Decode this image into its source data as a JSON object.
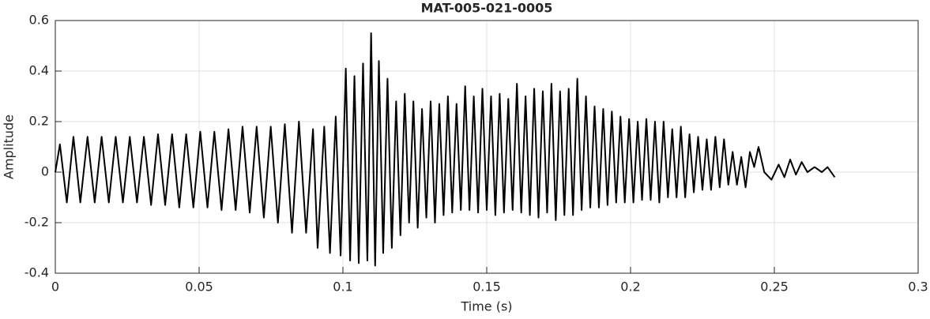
{
  "chart_data": {
    "type": "line",
    "title": "MAT-005-021-0005",
    "x_label": "Time (s)",
    "y_label": "Amplitude",
    "color": "#000000",
    "grid": true,
    "xlim": [
      0,
      0.3
    ],
    "xticks": [
      0,
      0.05,
      0.1,
      0.15,
      0.2,
      0.25,
      0.3
    ],
    "ylim": [
      -0.4,
      0.6
    ],
    "yticks": [
      -0.4,
      -0.2,
      0,
      0.2,
      0.4,
      0.6
    ],
    "x": [
      0,
      0.0016,
      0.004,
      0.0063,
      0.0087,
      0.0112,
      0.0137,
      0.0161,
      0.0186,
      0.021,
      0.0235,
      0.0259,
      0.0284,
      0.0308,
      0.0333,
      0.0357,
      0.0382,
      0.0406,
      0.0431,
      0.0455,
      0.048,
      0.0504,
      0.0529,
      0.0553,
      0.0578,
      0.0602,
      0.0627,
      0.0651,
      0.0676,
      0.07,
      0.0725,
      0.0749,
      0.0774,
      0.0798,
      0.0823,
      0.0847,
      0.0872,
      0.0896,
      0.0912,
      0.0935,
      0.0955,
      0.0975,
      0.0992,
      0.101,
      0.1025,
      0.104,
      0.1055,
      0.107,
      0.1085,
      0.1098,
      0.1112,
      0.1125,
      0.114,
      0.1155,
      0.117,
      0.1185,
      0.12,
      0.1215,
      0.123,
      0.1245,
      0.126,
      0.1275,
      0.129,
      0.1305,
      0.132,
      0.1335,
      0.135,
      0.1365,
      0.138,
      0.1395,
      0.141,
      0.1425,
      0.144,
      0.1455,
      0.147,
      0.1485,
      0.15,
      0.1515,
      0.153,
      0.1545,
      0.156,
      0.1575,
      0.159,
      0.1605,
      0.162,
      0.1635,
      0.165,
      0.1665,
      0.168,
      0.1695,
      0.171,
      0.1725,
      0.174,
      0.1755,
      0.177,
      0.1785,
      0.18,
      0.1815,
      0.183,
      0.1845,
      0.186,
      0.1875,
      0.189,
      0.1905,
      0.192,
      0.1935,
      0.195,
      0.1965,
      0.198,
      0.1995,
      0.201,
      0.2025,
      0.204,
      0.2055,
      0.207,
      0.2085,
      0.21,
      0.2115,
      0.213,
      0.2145,
      0.216,
      0.2175,
      0.219,
      0.2205,
      0.222,
      0.2235,
      0.225,
      0.2265,
      0.228,
      0.2295,
      0.231,
      0.2325,
      0.234,
      0.2355,
      0.237,
      0.2385,
      0.24,
      0.2415,
      0.243,
      0.2445,
      0.2465,
      0.249,
      0.2515,
      0.2535,
      0.2555,
      0.2575,
      0.2595,
      0.2615,
      0.264,
      0.2665,
      0.2685,
      0.271
    ],
    "values": [
      0,
      0.11,
      -0.12,
      0.14,
      -0.12,
      0.14,
      -0.12,
      0.14,
      -0.12,
      0.14,
      -0.12,
      0.14,
      -0.12,
      0.14,
      -0.13,
      0.15,
      -0.13,
      0.15,
      -0.14,
      0.15,
      -0.14,
      0.16,
      -0.14,
      0.16,
      -0.15,
      0.17,
      -0.15,
      0.18,
      -0.16,
      0.18,
      -0.18,
      0.18,
      -0.2,
      0.19,
      -0.24,
      0.2,
      -0.24,
      0.17,
      -0.3,
      0.18,
      -0.32,
      0.22,
      -0.33,
      0.41,
      -0.35,
      0.38,
      -0.36,
      0.43,
      -0.35,
      0.55,
      -0.37,
      0.44,
      -0.32,
      0.37,
      -0.3,
      0.28,
      -0.25,
      0.31,
      -0.2,
      0.28,
      -0.22,
      0.25,
      -0.18,
      0.28,
      -0.2,
      0.27,
      -0.17,
      0.3,
      -0.16,
      0.27,
      -0.15,
      0.34,
      -0.15,
      0.3,
      -0.16,
      0.33,
      -0.15,
      0.3,
      -0.17,
      0.31,
      -0.16,
      0.29,
      -0.15,
      0.35,
      -0.16,
      0.3,
      -0.17,
      0.33,
      -0.18,
      0.32,
      -0.16,
      0.35,
      -0.19,
      0.32,
      -0.17,
      0.33,
      -0.17,
      0.37,
      -0.15,
      0.3,
      -0.14,
      0.26,
      -0.14,
      0.25,
      -0.13,
      0.24,
      -0.12,
      0.22,
      -0.12,
      0.21,
      -0.12,
      0.2,
      -0.11,
      0.21,
      -0.11,
      0.2,
      -0.12,
      0.2,
      -0.1,
      0.17,
      -0.1,
      0.18,
      -0.1,
      0.15,
      -0.08,
      0.14,
      -0.07,
      0.13,
      -0.07,
      0.14,
      -0.06,
      0.13,
      -0.05,
      0.08,
      -0.05,
      0.06,
      -0.06,
      0.08,
      0.02,
      0.1,
      0,
      -0.03,
      0.03,
      -0.02,
      0.05,
      -0.01,
      0.04,
      0,
      0.02,
      0,
      0.02,
      -0.02
    ]
  }
}
